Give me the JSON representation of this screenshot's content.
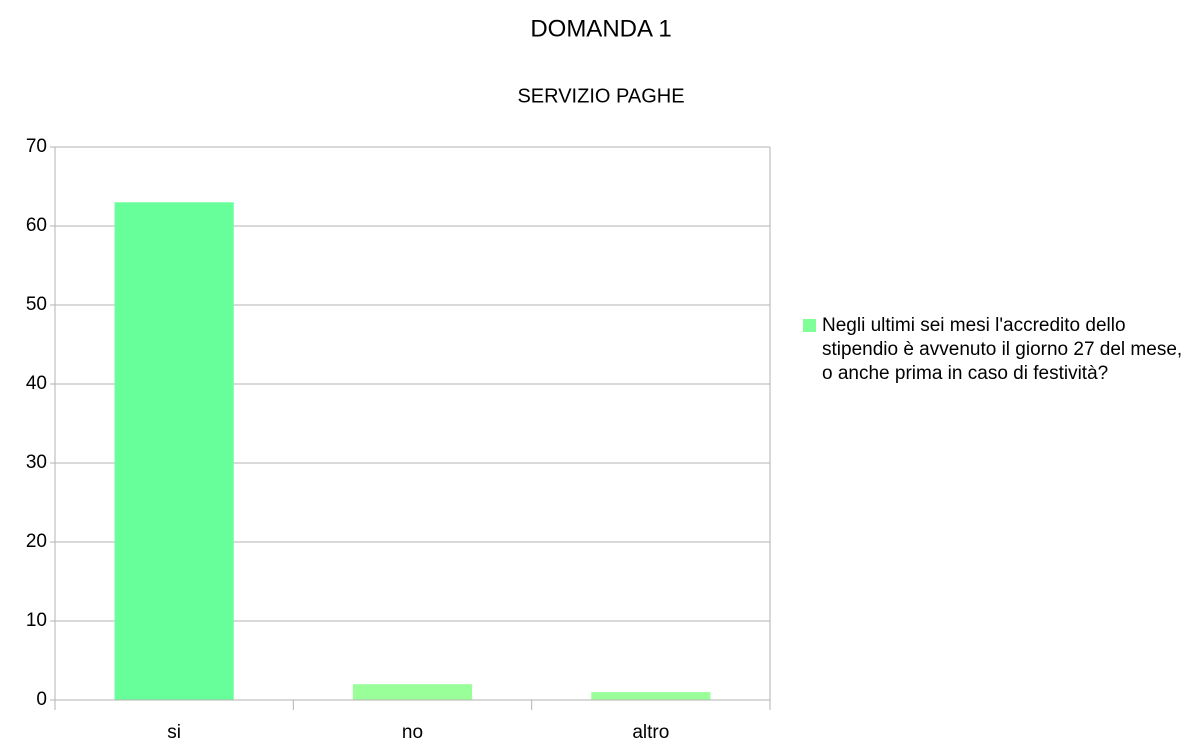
{
  "chart_data": {
    "type": "bar",
    "title": "DOMANDA 1",
    "subtitle": "SERVIZIO PAGHE",
    "categories": [
      "si",
      "no",
      "altro"
    ],
    "series": [
      {
        "name": "Negli ultimi sei mesi l'accredito dello stipendio è avvenuto il giorno 27 del mese, o anche prima in caso di festività?",
        "color": "#80ff99",
        "values": [
          63,
          2,
          1
        ],
        "colors": [
          "#66ff99",
          "#99ff99",
          "#99ff99"
        ]
      }
    ],
    "ylim": [
      0,
      70
    ],
    "yticks": [
      0,
      10,
      20,
      30,
      40,
      50,
      60,
      70
    ],
    "grid": true,
    "legend": "right"
  }
}
